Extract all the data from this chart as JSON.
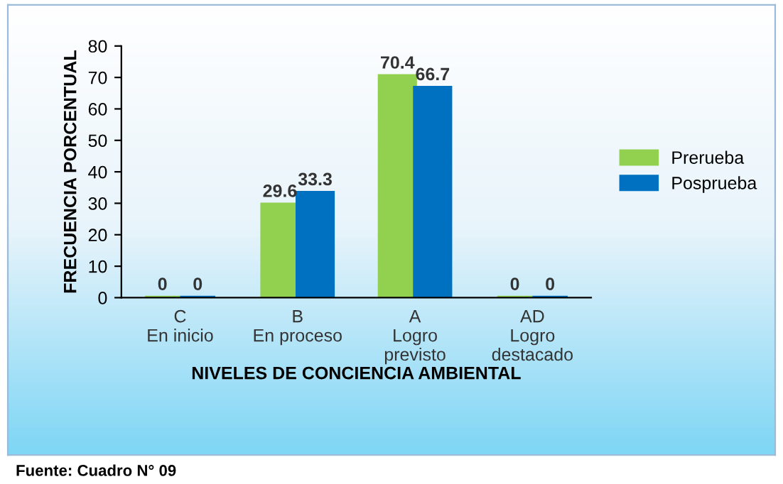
{
  "chart_data": {
    "type": "bar",
    "xlabel": "NIVELES DE CONCIENCIA AMBIENTAL",
    "ylabel": "FRECUENCIA PORCENTUAL",
    "categories": [
      "C\nEn inicio",
      "B\nEn proceso",
      "A\nLogro\nprevisto",
      "AD\nLogro\ndestacado"
    ],
    "series": [
      {
        "name": "Prerueba",
        "color": "#92d050",
        "values": [
          0,
          29.6,
          70.4,
          0
        ]
      },
      {
        "name": "Posprueba",
        "color": "#0070c0",
        "values": [
          0,
          33.3,
          66.7,
          0
        ]
      }
    ],
    "ylim": [
      0,
      80
    ],
    "yticks": [
      0,
      10,
      20,
      30,
      40,
      50,
      60,
      70,
      80
    ],
    "data_labels": true,
    "grid": false,
    "legend": "right",
    "annotations": [
      "Fuente: Cuadro N° 09"
    ]
  }
}
